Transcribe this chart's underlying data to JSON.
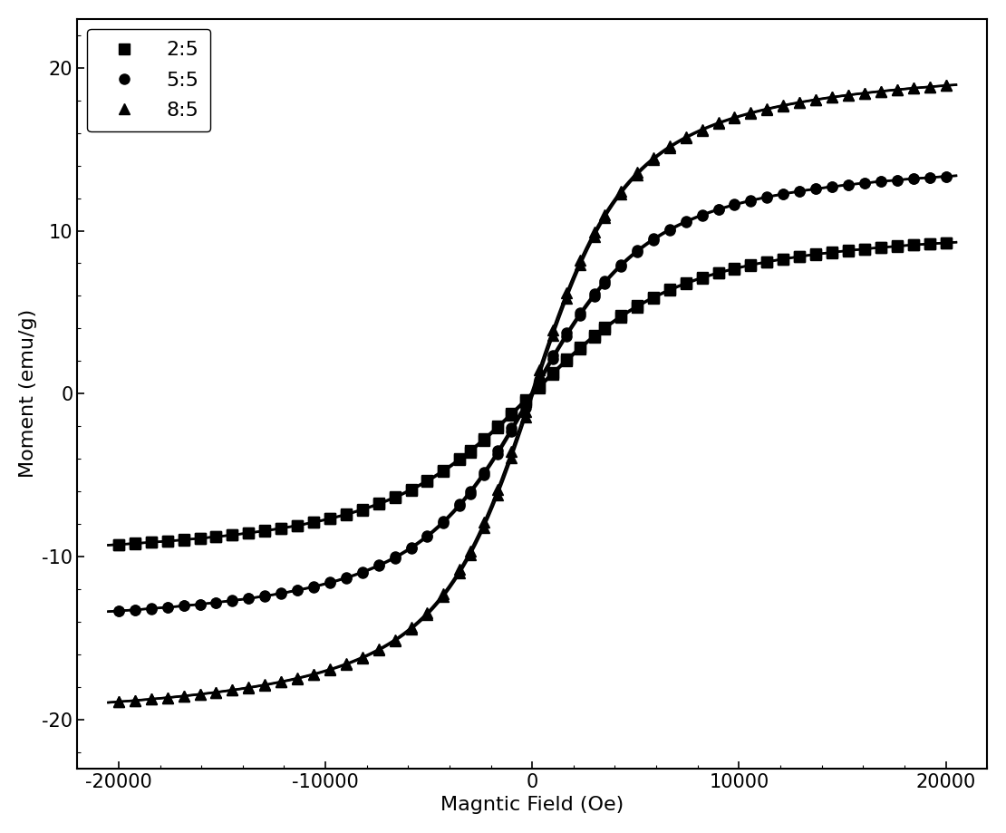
{
  "title": "",
  "xlabel": "Magntic Field (Oe)",
  "ylabel": "Moment (emu/g)",
  "xlim": [
    -22000,
    22000
  ],
  "ylim": [
    -23,
    23
  ],
  "xticks": [
    -20000,
    -10000,
    0,
    10000,
    20000
  ],
  "yticks": [
    -20,
    -10,
    0,
    10,
    20
  ],
  "series": [
    {
      "label": "2:5",
      "marker": "s",
      "color": "#000000",
      "saturation": 10.8,
      "coercivity": 50,
      "steepness": 0.00035
    },
    {
      "label": "5:5",
      "marker": "o",
      "color": "#000000",
      "saturation": 15.0,
      "coercivity": 50,
      "steepness": 0.00045
    },
    {
      "label": "8:5",
      "marker": "^",
      "color": "#000000",
      "saturation": 20.8,
      "coercivity": 50,
      "steepness": 0.00055
    }
  ],
  "background_color": "#ffffff",
  "legend_loc": "upper left",
  "markersize": 8,
  "linewidth": 1.8,
  "font_size": 16,
  "tick_labelsize": 15
}
